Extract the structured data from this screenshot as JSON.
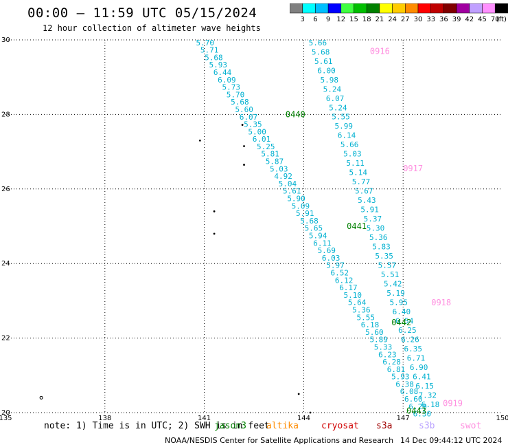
{
  "header": {
    "title": "00:00 – 11:59 UTC 05/15/2024",
    "subtitle": "12 hour collection of altimeter wave heights"
  },
  "colorbar": {
    "swatches": [
      "#808080",
      "#00ffff",
      "#00bfff",
      "#0000ff",
      "#40ff40",
      "#00bf00",
      "#008000",
      "#ffff00",
      "#ffcc00",
      "#ff8c00",
      "#ff0000",
      "#bf0000",
      "#800000",
      "#a000a0",
      "#c0a0ff",
      "#ff90ff",
      "#000000"
    ],
    "labels": [
      "3",
      "6",
      "9",
      "12",
      "15",
      "18",
      "21",
      "24",
      "27",
      "30",
      "33",
      "36",
      "39",
      "42",
      "45",
      "70"
    ],
    "unit": "(ft)"
  },
  "axes": {
    "x_ticks": [
      "135",
      "138",
      "141",
      "144",
      "147",
      "150"
    ],
    "y_ticks": [
      "30",
      "28",
      "26",
      "24",
      "22",
      "20"
    ],
    "x_range": [
      135,
      150
    ],
    "y_range": [
      20,
      30
    ]
  },
  "colors": {
    "wave_text": "#00b0d0",
    "pass_green": "#008000",
    "pass_pink": "#ff90e0"
  },
  "tracks": [
    {
      "values": [
        "5.70",
        "5.71",
        "5.68",
        "5.93",
        "6.44",
        "6.09",
        "5.73",
        "5.70",
        "5.68",
        "5.60",
        "6.07",
        "5.35",
        "5.00",
        "6.01",
        "5.25",
        "5.81",
        "5.87",
        "5.03",
        "4.92",
        "5.04",
        "5.61",
        "5.90",
        "5.09",
        "5.91",
        "5.68",
        "5.65",
        "5.94",
        "6.11",
        "5.69",
        "6.03",
        "5.97",
        "6.52",
        "6.12",
        "6.17",
        "5.10",
        "5.64",
        "5.36",
        "5.55",
        "6.18",
        "5.60",
        "5.89",
        "5.33",
        "6.23",
        "6.28",
        "6.81",
        "5.93",
        "6.38",
        "6.08",
        "6.60",
        "6.29",
        "6.30"
      ],
      "lon_start": 140.75,
      "lat_start": 29.93,
      "lon_end": 147.3,
      "lat_end": 19.97
    },
    {
      "values": [
        "5.66",
        "5.68",
        "5.61",
        "6.00",
        "5.98",
        "5.24",
        "6.07",
        "5.24",
        "5.55",
        "5.99",
        "6.14",
        "5.66",
        "5.03",
        "5.11",
        "5.14",
        "5.77",
        "5.67",
        "5.43",
        "5.91",
        "5.37",
        "5.30",
        "5.36",
        "5.83",
        "5.35",
        "5.57",
        "5.51",
        "5.42",
        "5.19",
        "5.95",
        "6.40",
        "6.54",
        "6.25",
        "6.26",
        "6.35",
        "6.71",
        "6.90",
        "6.41",
        "6.15",
        "7.32",
        "6.18"
      ],
      "lon_start": 144.15,
      "lat_start": 29.93,
      "lon_end": 147.55,
      "lat_end": 20.22
    }
  ],
  "pass_labels": [
    {
      "text": "0440",
      "lon": 143.45,
      "lat": 28.0,
      "color": "green"
    },
    {
      "text": "0441",
      "lon": 145.3,
      "lat": 25.0,
      "color": "green"
    },
    {
      "text": "0442",
      "lon": 146.65,
      "lat": 22.42,
      "color": "green"
    },
    {
      "text": "0443",
      "lon": 147.1,
      "lat": 20.05,
      "color": "green"
    },
    {
      "text": "0916",
      "lon": 146.0,
      "lat": 29.7,
      "color": "pink"
    },
    {
      "text": "0917",
      "lon": 147.0,
      "lat": 26.55,
      "color": "pink"
    },
    {
      "text": "0918",
      "lon": 147.85,
      "lat": 22.95,
      "color": "pink"
    },
    {
      "text": "0919",
      "lon": 148.2,
      "lat": 20.25,
      "color": "pink"
    }
  ],
  "islands": [
    {
      "lon": 142.15,
      "lat": 27.72
    },
    {
      "lon": 142.2,
      "lat": 27.15
    },
    {
      "lon": 142.2,
      "lat": 26.65
    },
    {
      "lon": 140.87,
      "lat": 27.3
    },
    {
      "lon": 141.3,
      "lat": 25.4
    },
    {
      "lon": 141.3,
      "lat": 24.8
    },
    {
      "lon": 136.08,
      "lat": 20.4
    },
    {
      "lon": 143.85,
      "lat": 20.5
    },
    {
      "lon": 144.2,
      "lat": 20.0
    }
  ],
  "footer": {
    "note_prefix": "note: 1) Time is in UTC; 2) SWH is in feet",
    "satellites": [
      {
        "name": "jason3",
        "color": "#008000"
      },
      {
        "name": "altika",
        "color": "#ff8c00"
      },
      {
        "name": "cryosat",
        "color": "#d00000"
      },
      {
        "name": "s3a",
        "color": "#a00000"
      },
      {
        "name": "s3b",
        "color": "#b8a0ff"
      },
      {
        "name": "swot",
        "color": "#ff90e0"
      }
    ],
    "credit": "NOAA/NESDIS Center for Satellite Applications and Research",
    "timestamp": "14 Dec 09:44:12 UTC 2024"
  }
}
